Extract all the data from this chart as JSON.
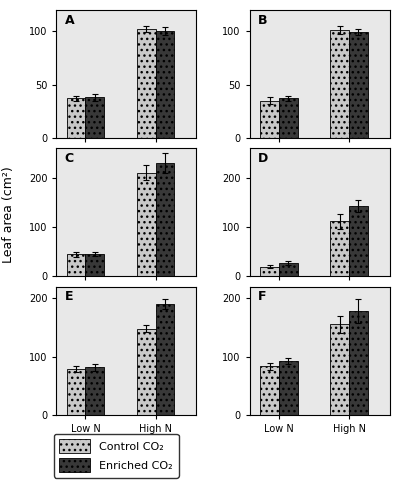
{
  "subplots": {
    "A": {
      "ylim": [
        0,
        120
      ],
      "yticks": [
        0,
        50,
        100
      ],
      "bars": {
        "Low N": {
          "control": 37,
          "enriched": 38
        },
        "High N": {
          "control": 102,
          "enriched": 100
        }
      },
      "errors": {
        "Low N": {
          "control": 2.5,
          "enriched": 3.5
        },
        "High N": {
          "control": 3.0,
          "enriched": 3.5
        }
      }
    },
    "B": {
      "ylim": [
        0,
        120
      ],
      "yticks": [
        0,
        50,
        100
      ],
      "bars": {
        "Low N": {
          "control": 35,
          "enriched": 37
        },
        "High N": {
          "control": 101,
          "enriched": 99
        }
      },
      "errors": {
        "Low N": {
          "control": 3.0,
          "enriched": 2.5
        },
        "High N": {
          "control": 4.0,
          "enriched": 3.0
        }
      }
    },
    "C": {
      "ylim": [
        0,
        260
      ],
      "yticks": [
        0,
        100,
        200
      ],
      "bars": {
        "Low N": {
          "control": 45,
          "enriched": 45
        },
        "High N": {
          "control": 210,
          "enriched": 230
        }
      },
      "errors": {
        "Low N": {
          "control": 5,
          "enriched": 4
        },
        "High N": {
          "control": 15,
          "enriched": 20
        }
      }
    },
    "D": {
      "ylim": [
        0,
        260
      ],
      "yticks": [
        0,
        100,
        200
      ],
      "bars": {
        "Low N": {
          "control": 20,
          "enriched": 28
        },
        "High N": {
          "control": 112,
          "enriched": 142
        }
      },
      "errors": {
        "Low N": {
          "control": 3,
          "enriched": 4
        },
        "High N": {
          "control": 15,
          "enriched": 12
        }
      }
    },
    "E": {
      "ylim": [
        0,
        220
      ],
      "yticks": [
        0,
        100,
        200
      ],
      "bars": {
        "Low N": {
          "control": 78,
          "enriched": 82
        },
        "High N": {
          "control": 148,
          "enriched": 190
        }
      },
      "errors": {
        "Low N": {
          "control": 5,
          "enriched": 6
        },
        "High N": {
          "control": 6,
          "enriched": 8
        }
      }
    },
    "F": {
      "ylim": [
        0,
        220
      ],
      "yticks": [
        0,
        100,
        200
      ],
      "bars": {
        "Low N": {
          "control": 83,
          "enriched": 93
        },
        "High N": {
          "control": 155,
          "enriched": 178
        }
      },
      "errors": {
        "Low N": {
          "control": 6,
          "enriched": 5
        },
        "High N": {
          "control": 15,
          "enriched": 20
        }
      }
    }
  },
  "control_color": "#c8c8c8",
  "enriched_color": "#383838",
  "control_hatch": "...",
  "enriched_hatch": "...",
  "bar_width": 0.32,
  "ylabel": "Leaf area (cm²)",
  "legend_labels": [
    "Control CO₂",
    "Enriched CO₂"
  ],
  "xtick_labels": [
    "Low N",
    "High N"
  ],
  "subplot_order": [
    [
      "A",
      "B"
    ],
    [
      "C",
      "D"
    ],
    [
      "E",
      "F"
    ]
  ],
  "bg_color": "#e8e8e8"
}
